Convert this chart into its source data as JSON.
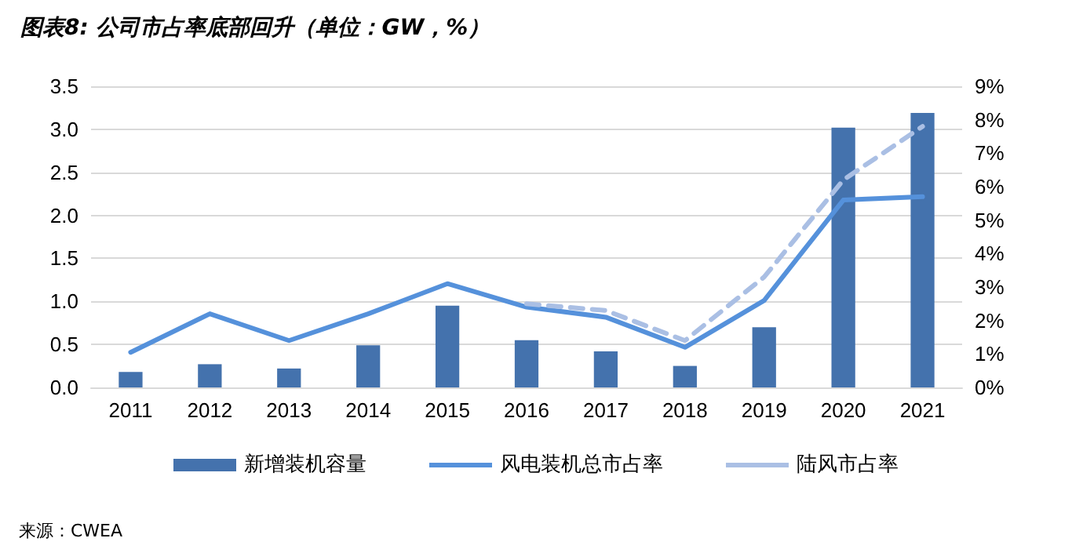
{
  "chart_data": {
    "type": "bar",
    "title": "图表8: 公司市占率底部回升（单位：GW，%）",
    "categories": [
      "2011",
      "2012",
      "2013",
      "2014",
      "2015",
      "2016",
      "2017",
      "2018",
      "2019",
      "2020",
      "2021"
    ],
    "series": [
      {
        "name": "新增装机容量",
        "type": "bar",
        "color": "#4472ad",
        "values": [
          0.18,
          0.27,
          0.22,
          0.49,
          0.95,
          0.55,
          0.42,
          0.25,
          0.7,
          3.02,
          3.19
        ]
      },
      {
        "name": "风电装机总市占率",
        "type": "line",
        "axis": "y2",
        "color": "#5591db",
        "line_style": "solid",
        "values": [
          1.05,
          2.2,
          1.4,
          2.2,
          3.1,
          2.4,
          2.1,
          1.2,
          2.6,
          5.6,
          5.7
        ]
      },
      {
        "name": "陆风市占率",
        "type": "line",
        "axis": "y2",
        "color": "#aabfe4",
        "line_style": "dashed",
        "values": [
          null,
          null,
          null,
          null,
          null,
          2.5,
          2.3,
          1.4,
          3.3,
          6.2,
          7.8
        ]
      }
    ],
    "ylim": [
      0,
      3.5
    ],
    "yticks": [
      {
        "value": 0,
        "label": "0.0"
      },
      {
        "value": 0.5,
        "label": "0.5"
      },
      {
        "value": 1,
        "label": "1.0"
      },
      {
        "value": 1.5,
        "label": "1.5"
      },
      {
        "value": 2,
        "label": "2.0"
      },
      {
        "value": 2.5,
        "label": "2.5"
      },
      {
        "value": 3,
        "label": "3.0"
      },
      {
        "value": 3.5,
        "label": "3.5"
      }
    ],
    "y2lim": [
      0,
      9
    ],
    "y2ticks": [
      {
        "value": 0,
        "label": "0%"
      },
      {
        "value": 1,
        "label": "1%"
      },
      {
        "value": 2,
        "label": "2%"
      },
      {
        "value": 3,
        "label": "3%"
      },
      {
        "value": 4,
        "label": "4%"
      },
      {
        "value": 5,
        "label": "5%"
      },
      {
        "value": 6,
        "label": "6%"
      },
      {
        "value": 7,
        "label": "7%"
      },
      {
        "value": 8,
        "label": "8%"
      },
      {
        "value": 9,
        "label": "9%"
      }
    ],
    "grid": "y",
    "legend": "bottom",
    "marker": "none",
    "annotations": [
      "来源：CWEA"
    ]
  }
}
